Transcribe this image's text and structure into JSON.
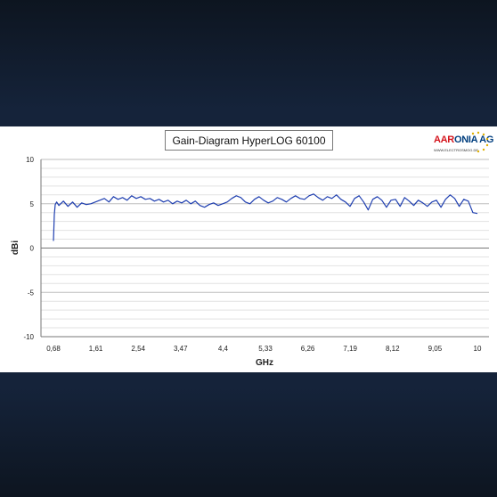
{
  "chart_data": {
    "type": "line",
    "title": "Gain-Diagram HyperLOG 60100",
    "xlabel": "GHz",
    "ylabel": "dBi",
    "ylim": [
      -10,
      10
    ],
    "y_ticks": [
      10,
      5,
      0,
      -5,
      -10
    ],
    "x_ticks": [
      "0,68",
      "1,61",
      "2,54",
      "3,47",
      "4,4",
      "5,33",
      "6,26",
      "7,19",
      "8,12",
      "9,05",
      "10"
    ],
    "xlim": [
      0.68,
      10
    ],
    "grid": true,
    "series": [
      {
        "color": "#1f3fb0",
        "x": [
          0.68,
          0.7,
          0.72,
          0.75,
          0.8,
          0.9,
          1.0,
          1.1,
          1.2,
          1.3,
          1.4,
          1.5,
          1.6,
          1.7,
          1.8,
          1.9,
          2.0,
          2.1,
          2.2,
          2.3,
          2.4,
          2.5,
          2.6,
          2.7,
          2.8,
          2.9,
          3.0,
          3.1,
          3.2,
          3.3,
          3.4,
          3.5,
          3.6,
          3.7,
          3.8,
          3.9,
          4.0,
          4.1,
          4.2,
          4.3,
          4.4,
          4.5,
          4.6,
          4.7,
          4.8,
          4.9,
          5.0,
          5.1,
          5.2,
          5.3,
          5.4,
          5.5,
          5.6,
          5.7,
          5.8,
          5.9,
          6.0,
          6.1,
          6.2,
          6.3,
          6.4,
          6.5,
          6.6,
          6.7,
          6.8,
          6.9,
          7.0,
          7.1,
          7.2,
          7.3,
          7.4,
          7.5,
          7.6,
          7.7,
          7.8,
          7.9,
          8.0,
          8.1,
          8.2,
          8.3,
          8.4,
          8.5,
          8.6,
          8.7,
          8.8,
          8.9,
          9.0,
          9.1,
          9.2,
          9.3,
          9.4,
          9.5,
          9.6,
          9.7,
          9.8,
          9.9,
          10.0
        ],
        "values": [
          0.8,
          3.8,
          4.9,
          5.2,
          4.8,
          5.3,
          4.7,
          5.2,
          4.6,
          5.1,
          4.9,
          5.0,
          5.2,
          5.4,
          5.6,
          5.2,
          5.8,
          5.5,
          5.7,
          5.4,
          5.9,
          5.6,
          5.8,
          5.5,
          5.6,
          5.3,
          5.5,
          5.2,
          5.4,
          5.0,
          5.3,
          5.1,
          5.4,
          5.0,
          5.3,
          4.8,
          4.6,
          4.9,
          5.1,
          4.8,
          5.0,
          5.2,
          5.6,
          5.9,
          5.7,
          5.2,
          5.0,
          5.5,
          5.8,
          5.4,
          5.1,
          5.3,
          5.7,
          5.5,
          5.2,
          5.6,
          5.9,
          5.6,
          5.5,
          5.9,
          6.1,
          5.7,
          5.4,
          5.8,
          5.6,
          6.0,
          5.5,
          5.2,
          4.7,
          5.6,
          5.9,
          5.2,
          4.3,
          5.5,
          5.8,
          5.4,
          4.6,
          5.4,
          5.5,
          4.7,
          5.7,
          5.3,
          4.8,
          5.4,
          5.1,
          4.7,
          5.2,
          5.4,
          4.6,
          5.5,
          6.0,
          5.6,
          4.7,
          5.5,
          5.3,
          4.0,
          3.9
        ]
      }
    ]
  },
  "logo": {
    "name_part1": "AAR",
    "name_part2": "ONIA AG",
    "url": "WWW.ELECTROSMOG.DE"
  }
}
